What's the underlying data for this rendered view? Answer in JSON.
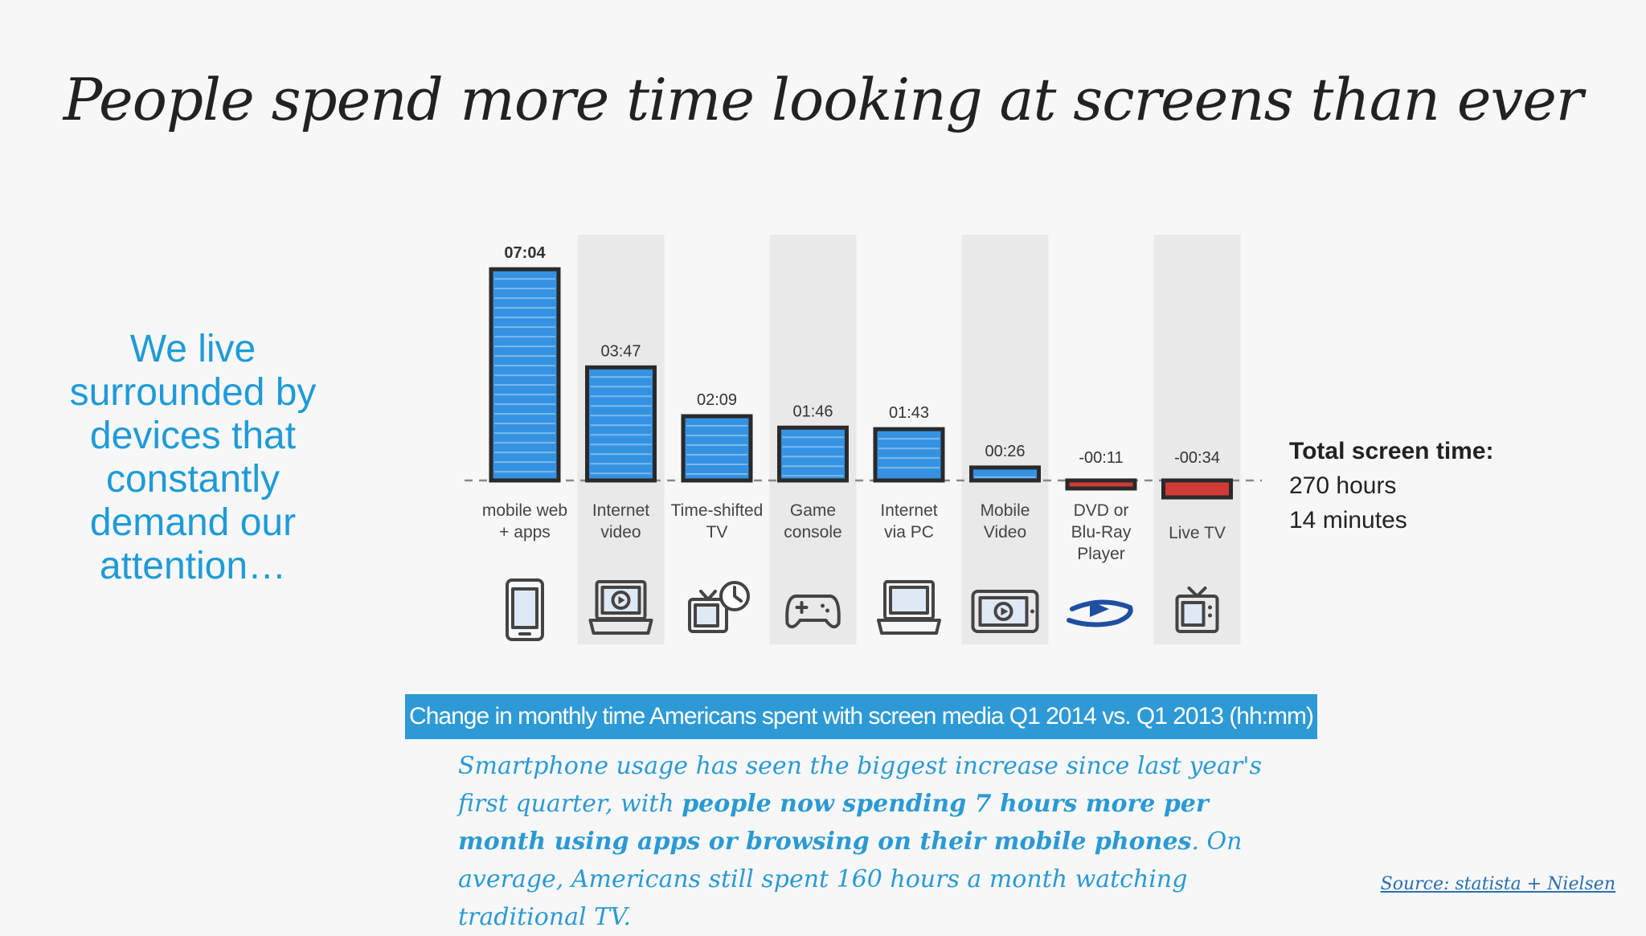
{
  "title": "People spend more time looking at screens than ever",
  "tagline": "We live surrounded by devices that constantly demand our attention…",
  "total": {
    "label": "Total screen time:",
    "line1": "270 hours",
    "line2": "14 minutes"
  },
  "caption": "Change in monthly time Americans spent with screen media Q1 2014 vs. Q1 2013 (hh:mm)",
  "summary": {
    "part1": "Smartphone usage has seen the biggest increase since last year's first quarter, with ",
    "bold": "people now spending 7 hours more per month using apps or browsing on their mobile phones",
    "part2": ". On average, Americans still spent 160 hours a month watching traditional TV."
  },
  "source": "Source: statista + Nielsen",
  "colors": {
    "positive": "#3592e2",
    "negative": "#d23a36",
    "accent": "#2d9ad6"
  },
  "chart_data": {
    "type": "bar",
    "title": "",
    "xlabel": "",
    "ylabel": "",
    "unit": "hh:mm",
    "ylim": [
      -40,
      430
    ],
    "categories": [
      [
        "mobile web",
        "+ apps"
      ],
      [
        "Internet",
        "video"
      ],
      [
        "Time-shifted",
        "TV"
      ],
      [
        "Game",
        "console"
      ],
      [
        "Internet",
        "via PC"
      ],
      [
        "Mobile",
        "Video"
      ],
      [
        "DVD or",
        "Blu-Ray",
        "Player"
      ],
      [
        "Live TV"
      ]
    ],
    "labels": [
      "07:04",
      "03:47",
      "02:09",
      "01:46",
      "01:43",
      "00:26",
      "-00:11",
      "-00:34"
    ],
    "values": [
      424,
      227,
      129,
      106,
      103,
      26,
      -11,
      -34
    ],
    "shaded_columns": [
      1,
      3,
      5,
      7
    ],
    "icons": [
      "smartphone-icon",
      "laptop-video-icon",
      "tv-clock-icon",
      "gamepad-icon",
      "laptop-icon",
      "tablet-video-icon",
      "bluray-icon",
      "tv-icon"
    ]
  }
}
